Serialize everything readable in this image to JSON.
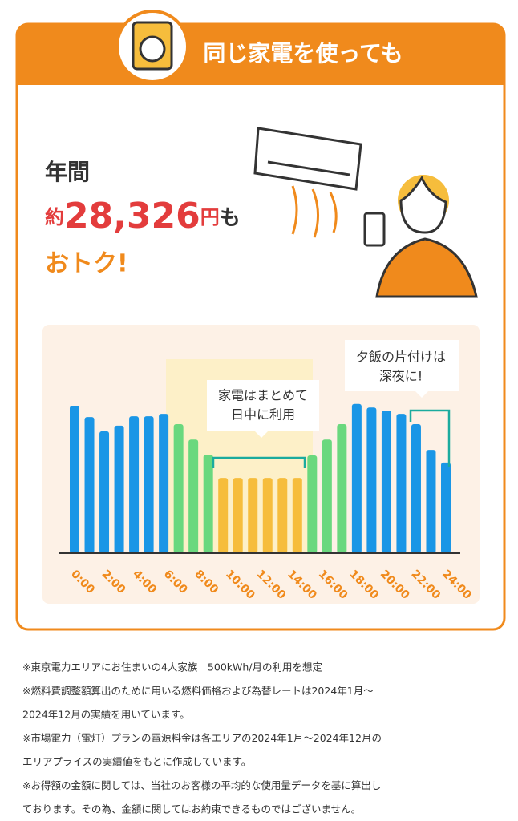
{
  "header": {
    "title": "同じ家電を使っても"
  },
  "headline": {
    "line1": "年間",
    "prefix": "約",
    "amount": "28,326",
    "unit": "円",
    "suffix": "も",
    "line3": "おトク!"
  },
  "chart_data": {
    "type": "bar",
    "values": [
      3.72,
      3.44,
      3.08,
      3.22,
      3.46,
      3.46,
      3.52,
      3.26,
      2.87,
      2.49,
      1.9,
      1.9,
      1.9,
      1.9,
      1.9,
      1.9,
      2.47,
      2.87,
      3.26,
      3.77,
      3.68,
      3.6,
      3.52,
      3.26,
      2.61,
      2.29
    ],
    "colors": [
      "#1a96e6",
      "#1a96e6",
      "#1a96e6",
      "#1a96e6",
      "#1a96e6",
      "#1a96e6",
      "#1a96e6",
      "#6ad87e",
      "#6ad87e",
      "#6ad87e",
      "#f6bd3c",
      "#f6bd3c",
      "#f6bd3c",
      "#f6bd3c",
      "#f6bd3c",
      "#f6bd3c",
      "#6ad87e",
      "#6ad87e",
      "#6ad87e",
      "#1a96e6",
      "#1a96e6",
      "#1a96e6",
      "#1a96e6",
      "#1a96e6",
      "#1a96e6",
      "#1a96e6"
    ],
    "ylim": [
      0,
      5
    ],
    "xlim": [
      0,
      24
    ],
    "xticks": [
      {
        "value": 0,
        "label": "0:00"
      },
      {
        "value": 2,
        "label": "2:00"
      },
      {
        "value": 4,
        "label": "4:00"
      },
      {
        "value": 6,
        "label": "6:00"
      },
      {
        "value": 8,
        "label": "8:00"
      },
      {
        "value": 10,
        "label": "10:00"
      },
      {
        "value": 12,
        "label": "12:00"
      },
      {
        "value": 14,
        "label": "14:00"
      },
      {
        "value": 16,
        "label": "16:00"
      },
      {
        "value": 18,
        "label": "18:00"
      },
      {
        "value": 20,
        "label": "20:00"
      },
      {
        "value": 22,
        "label": "22:00"
      },
      {
        "value": 24,
        "label": "24:00"
      }
    ],
    "annotations": [
      {
        "lines": [
          "家電はまとめて",
          "日中に利用"
        ]
      },
      {
        "lines": [
          "夕飯の片付けは",
          "深夜に!"
        ]
      }
    ]
  },
  "notes": [
    "※東京電力エリアにお住まいの4人家族　500kWh/月の利用を想定",
    "※燃料費調整額算出のために用いる燃料価格および為替レートは2024年1月～",
    "2024年12月の実績を用いています。",
    "※市場電力（電灯）プランの電源料金は各エリアの2024年1月～2024年12月の",
    "エリアプライスの実績値をもとに作成しています。",
    "※お得額の金額に関しては、当社のお客様の平均的な使用量データを基に算出し",
    "ております。その為、金額に関してはお約束できるものではございません。"
  ]
}
